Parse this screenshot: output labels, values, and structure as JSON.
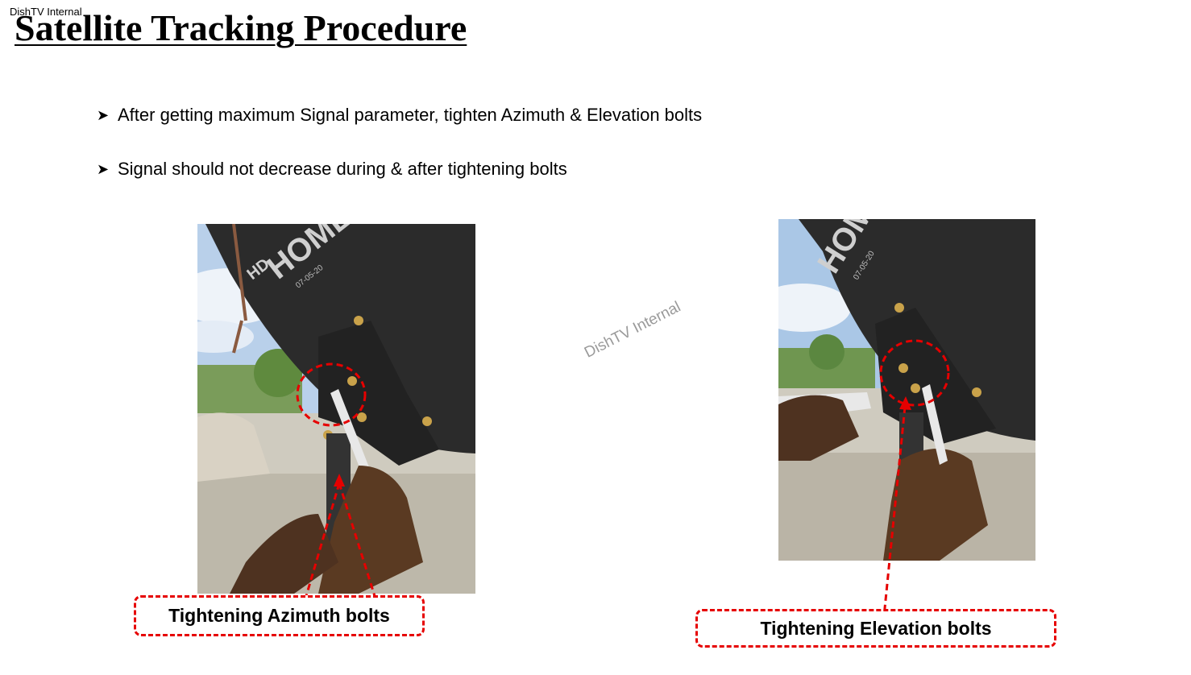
{
  "header": {
    "classification": "DishTV Internal",
    "title": "Satellite Tracking Procedure"
  },
  "bullets": [
    {
      "icon": "arrow-bullet-icon",
      "text": "After getting maximum Signal parameter, tighten Azimuth & Elevation bolts"
    },
    {
      "icon": "arrow-bullet-icon",
      "text": "Signal should not decrease during & after tightening bolts"
    }
  ],
  "photos": {
    "azimuth": {
      "dish_text": "HOME",
      "dish_badge": "HD",
      "dish_date": "07-05-20"
    },
    "elevation": {
      "dish_text": "HOME",
      "dish_date": "07-05-20"
    }
  },
  "watermark": "DishTV Internal",
  "callouts": {
    "azimuth": "Tightening Azimuth bolts",
    "elevation": "Tightening Elevation bolts"
  },
  "colors": {
    "annotation": "#e60000",
    "dish": "#2b2b2b",
    "sky": "#aac7e6"
  }
}
